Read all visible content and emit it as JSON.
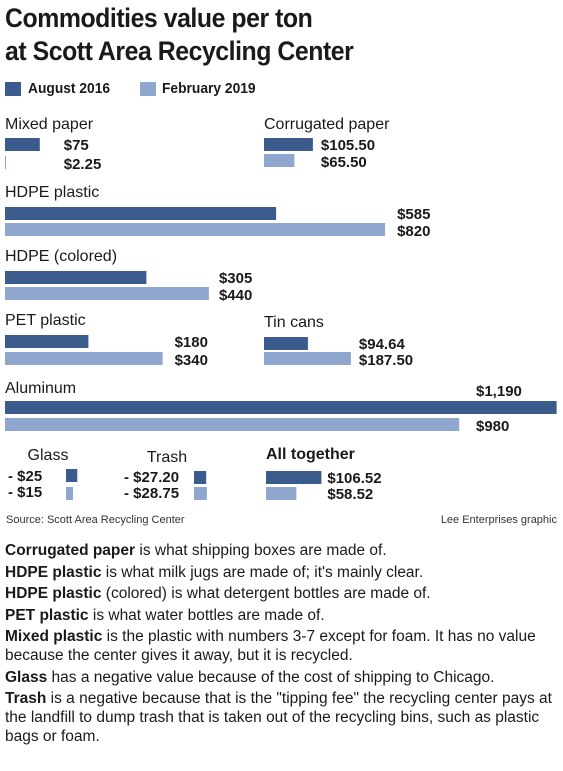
{
  "title_line1": "Commodities value per ton",
  "title_line2": "at Scott Area Recycling Center",
  "colors": {
    "aug2016": "#3b5b8c",
    "feb2019": "#8fa7cf"
  },
  "legend": [
    "August 2016",
    "February 2019"
  ],
  "chart_data": {
    "type": "bar",
    "title": "Commodities value per ton at Scott Area Recycling Center",
    "series": [
      {
        "name": "August 2016"
      },
      {
        "name": "February 2019"
      }
    ],
    "categories": [
      {
        "name": "Mixed paper",
        "values": [
          75,
          2.25
        ],
        "labels": [
          "$75",
          "$2.25"
        ]
      },
      {
        "name": "Corrugated paper",
        "values": [
          105.5,
          65.5
        ],
        "labels": [
          "$105.50",
          "$65.50"
        ]
      },
      {
        "name": "HDPE plastic",
        "values": [
          585,
          820
        ],
        "labels": [
          "$585",
          "$820"
        ]
      },
      {
        "name": "HDPE (colored)",
        "values": [
          305,
          440
        ],
        "labels": [
          "$305",
          "$440"
        ]
      },
      {
        "name": "PET plastic",
        "values": [
          180,
          340
        ],
        "labels": [
          "$180",
          "$340"
        ]
      },
      {
        "name": "Tin cans",
        "values": [
          94.64,
          187.5
        ],
        "labels": [
          "$94.64",
          "$187.50"
        ]
      },
      {
        "name": "Aluminum",
        "values": [
          1190,
          980
        ],
        "labels": [
          "$1,190",
          "$980"
        ]
      },
      {
        "name": "Glass",
        "values": [
          -25,
          -15
        ],
        "labels": [
          "- $25",
          "- $15"
        ]
      },
      {
        "name": "Trash",
        "values": [
          -27.2,
          -28.75
        ],
        "labels": [
          "- $27.20",
          "- $28.75"
        ]
      },
      {
        "name": "All together",
        "values": [
          106.52,
          58.52
        ],
        "labels": [
          "$106.52",
          "$58.52"
        ]
      }
    ]
  },
  "source": "Source: Scott Area Recycling Center",
  "credit": "Lee Enterprises graphic",
  "notes": [
    {
      "term": "Corrugated paper",
      "text": " is what shipping boxes are made of."
    },
    {
      "term": "HDPE plastic",
      "text": " is what milk jugs are made of; it's mainly clear."
    },
    {
      "term": "HDPE plastic",
      "text": " (colored) is what detergent bottles are made of."
    },
    {
      "term": "PET plastic",
      "text": " is what water bottles are made of."
    },
    {
      "term": "Mixed plastic",
      "text": " is the plastic with numbers 3-7 except for foam. It has no value because the center gives it away, but it is recycled."
    },
    {
      "term": "Glass",
      "text": " has a negative value because of the cost of shipping to Chicago."
    },
    {
      "term": "Trash",
      "text": " is a negative because that is the \"tipping fee\" the recycling center pays at the landfill to dump trash that is taken out of the recycling bins, such as plastic bags or foam."
    }
  ]
}
